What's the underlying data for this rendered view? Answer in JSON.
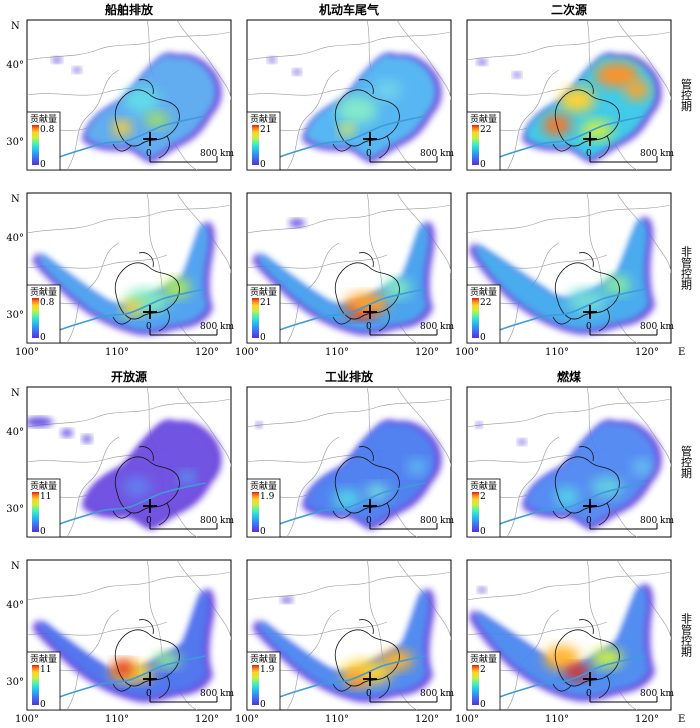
{
  "sources": [
    {
      "title": "船舶排放",
      "max_controlled": "0.8",
      "max_uncontrolled": "0.8"
    },
    {
      "title": "机动车尾气",
      "max_controlled": "21",
      "max_uncontrolled": "21"
    },
    {
      "title": "二次源",
      "max_controlled": "22",
      "max_uncontrolled": "22"
    },
    {
      "title": "开放源",
      "max_controlled": "11",
      "max_uncontrolled": "11"
    },
    {
      "title": "工业排放",
      "max_controlled": "1.9",
      "max_uncontrolled": "1.9"
    },
    {
      "title": "燃煤",
      "max_controlled": "2",
      "max_uncontrolled": "2"
    }
  ],
  "periods": {
    "controlled": "管控期",
    "uncontrolled": "非管控期"
  },
  "legend": {
    "title": "贡献量",
    "min": "0"
  },
  "scalebar": {
    "start": "0",
    "end": "800 km"
  },
  "axes": {
    "lat_labels": [
      "40°",
      "30°"
    ],
    "lon_labels": [
      "100°",
      "110°",
      "120°"
    ],
    "north": "N",
    "east": "E"
  },
  "colors": {
    "colormap": [
      "#5a2fd8",
      "#3f6ff0",
      "#28b8f0",
      "#3ff0c0",
      "#c8f040",
      "#ffd02a",
      "#ff7a1a",
      "#e01e0e"
    ],
    "river": "#3d9bd8"
  }
}
